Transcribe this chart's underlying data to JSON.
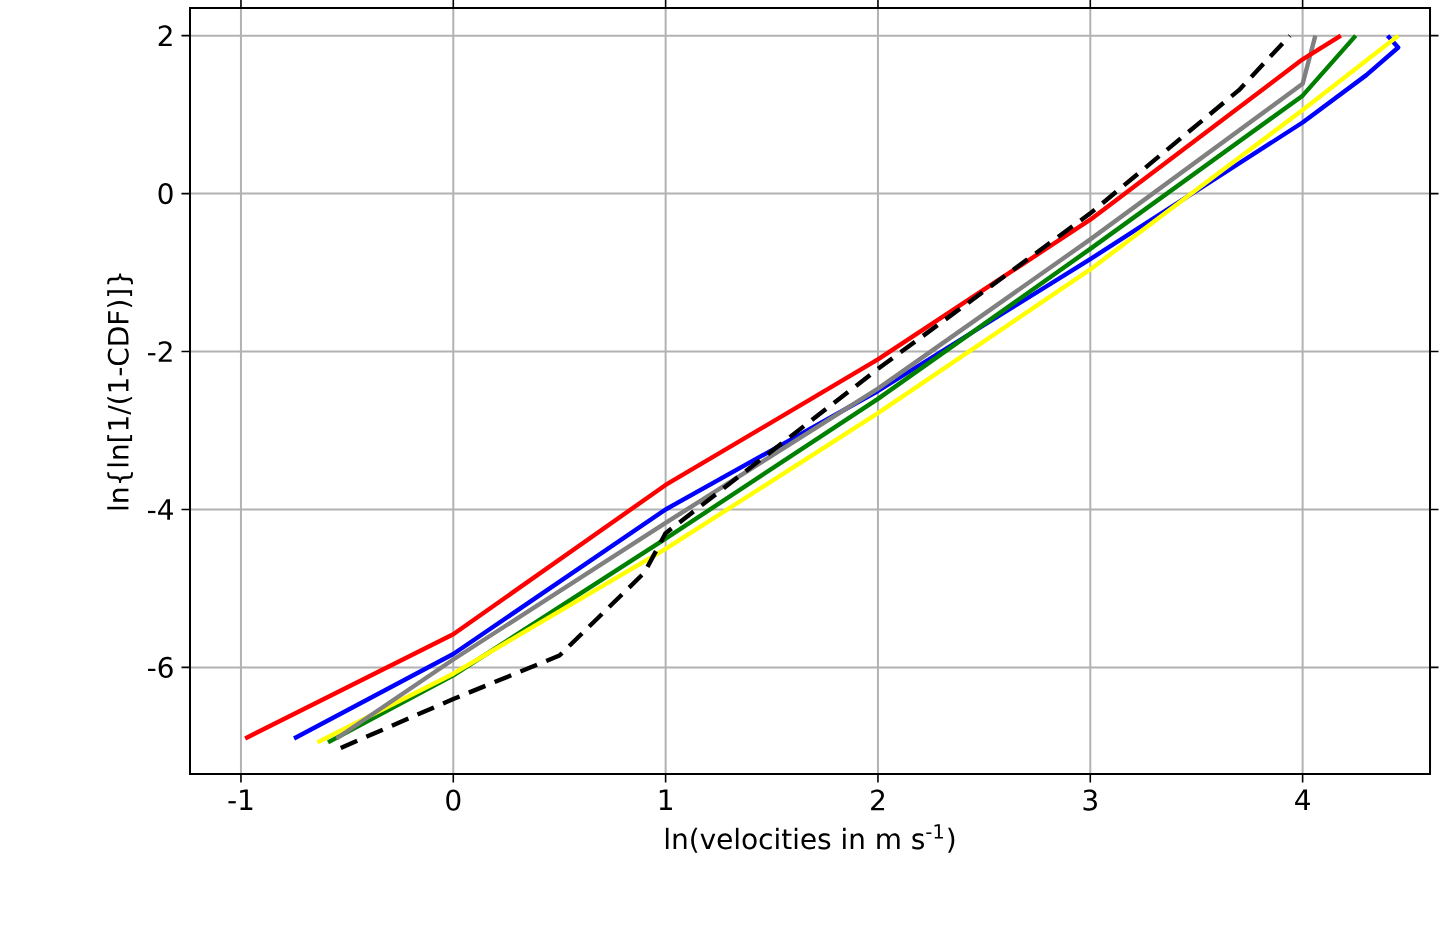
{
  "chart_data": {
    "type": "line",
    "xlabel": "ln(velocities in m s$^{-1}$)",
    "ylabel": "ln{ln[1/(1-CDF)]}",
    "xlim": [
      -1.24,
      4.6
    ],
    "ylim": [
      -7.35,
      2.35
    ],
    "xticks": [
      -1,
      0,
      1,
      2,
      3,
      4
    ],
    "yticks": [
      -6,
      -4,
      -2,
      0,
      2
    ],
    "grid": true,
    "marker": "none",
    "series": [
      {
        "color": "#0000ff",
        "x": [
          -0.75,
          0,
          1,
          2,
          3,
          4,
          4.3,
          4.45,
          4.4
        ],
        "values": [
          -6.9,
          -5.83,
          -4.0,
          -2.5,
          -0.83,
          0.9,
          1.5,
          1.85,
          2.0
        ]
      },
      {
        "color": "#008000",
        "x": [
          -0.59,
          0,
          1,
          2,
          3,
          4,
          4.25
        ],
        "values": [
          -6.95,
          -6.1,
          -4.37,
          -2.6,
          -0.7,
          1.24,
          2.0
        ]
      },
      {
        "color": "#ffff00",
        "x": [
          -0.64,
          0,
          1,
          2,
          3,
          4,
          4.45
        ],
        "values": [
          -6.95,
          -6.08,
          -4.5,
          -2.78,
          -0.96,
          1.06,
          2.0
        ]
      },
      {
        "color": "#808080",
        "x": [
          -0.55,
          0,
          1,
          2,
          3,
          4,
          4.06
        ],
        "values": [
          -6.9,
          -5.9,
          -4.17,
          -2.47,
          -0.58,
          1.39,
          2.0
        ]
      },
      {
        "color": "#ff0000",
        "x": [
          -0.98,
          0,
          1,
          2,
          3,
          4,
          4.18
        ],
        "values": [
          -6.9,
          -5.58,
          -3.69,
          -2.1,
          -0.33,
          1.7,
          2.0
        ]
      },
      {
        "color": "#000000",
        "line_style": "dashed",
        "x": [
          -0.53,
          0,
          0.5,
          0.9,
          1,
          2,
          3,
          3.7,
          3.94
        ],
        "values": [
          -7.02,
          -6.4,
          -5.85,
          -4.8,
          -4.3,
          -2.22,
          -0.25,
          1.31,
          2.0
        ]
      }
    ]
  }
}
